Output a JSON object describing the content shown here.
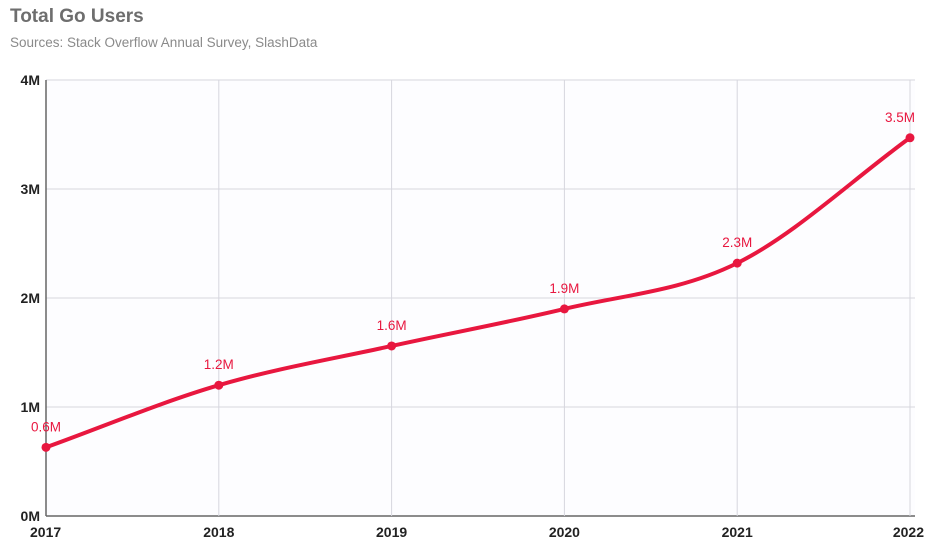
{
  "chart_data": {
    "type": "line",
    "title": "Total Go Users",
    "subtitle": "Sources: Stack Overflow Annual Survey, SlashData",
    "x": [
      "2017",
      "2018",
      "2019",
      "2020",
      "2021",
      "2022"
    ],
    "values": [
      0.63,
      1.2,
      1.56,
      1.9,
      2.32,
      3.47
    ],
    "data_labels": [
      "0.6M",
      "1.2M",
      "1.6M",
      "1.9M",
      "2.3M",
      "3.5M"
    ],
    "yticks": [
      0,
      1,
      2,
      3,
      4
    ],
    "ytick_labels": [
      "0M",
      "1M",
      "2M",
      "3M",
      "4M"
    ],
    "ylim": [
      0,
      4
    ],
    "grid": true,
    "line_color": "#e8173f",
    "grid_color": "#d6d6de"
  }
}
